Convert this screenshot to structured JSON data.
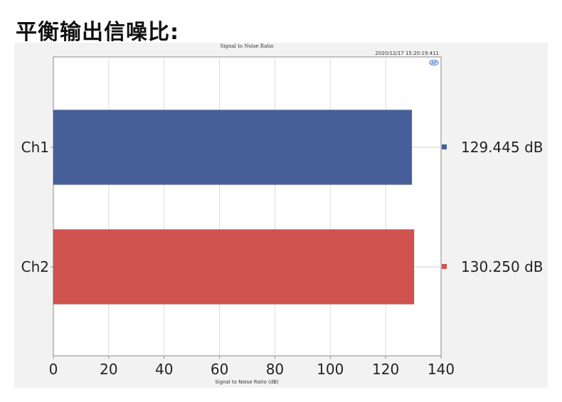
{
  "page": {
    "heading": "平衡输出信噪比:"
  },
  "chart_data": {
    "type": "bar",
    "orientation": "horizontal",
    "title": "Signal to Noise Ratio",
    "timestamp": "2020/12/17 15:20:19.411",
    "logo": "AP",
    "xlabel": "Signal to Noise Ratio (dB)",
    "xlim": [
      0,
      140
    ],
    "xticks": [
      "0",
      "20",
      "40",
      "60",
      "80",
      "100",
      "120",
      "140"
    ],
    "grid": true,
    "categories": [
      "Ch1",
      "Ch2"
    ],
    "values": [
      129.445,
      130.25
    ],
    "value_labels": [
      "129.445 dB",
      "130.250 dB"
    ],
    "colors": [
      "#465f9b",
      "#d0534f"
    ]
  }
}
